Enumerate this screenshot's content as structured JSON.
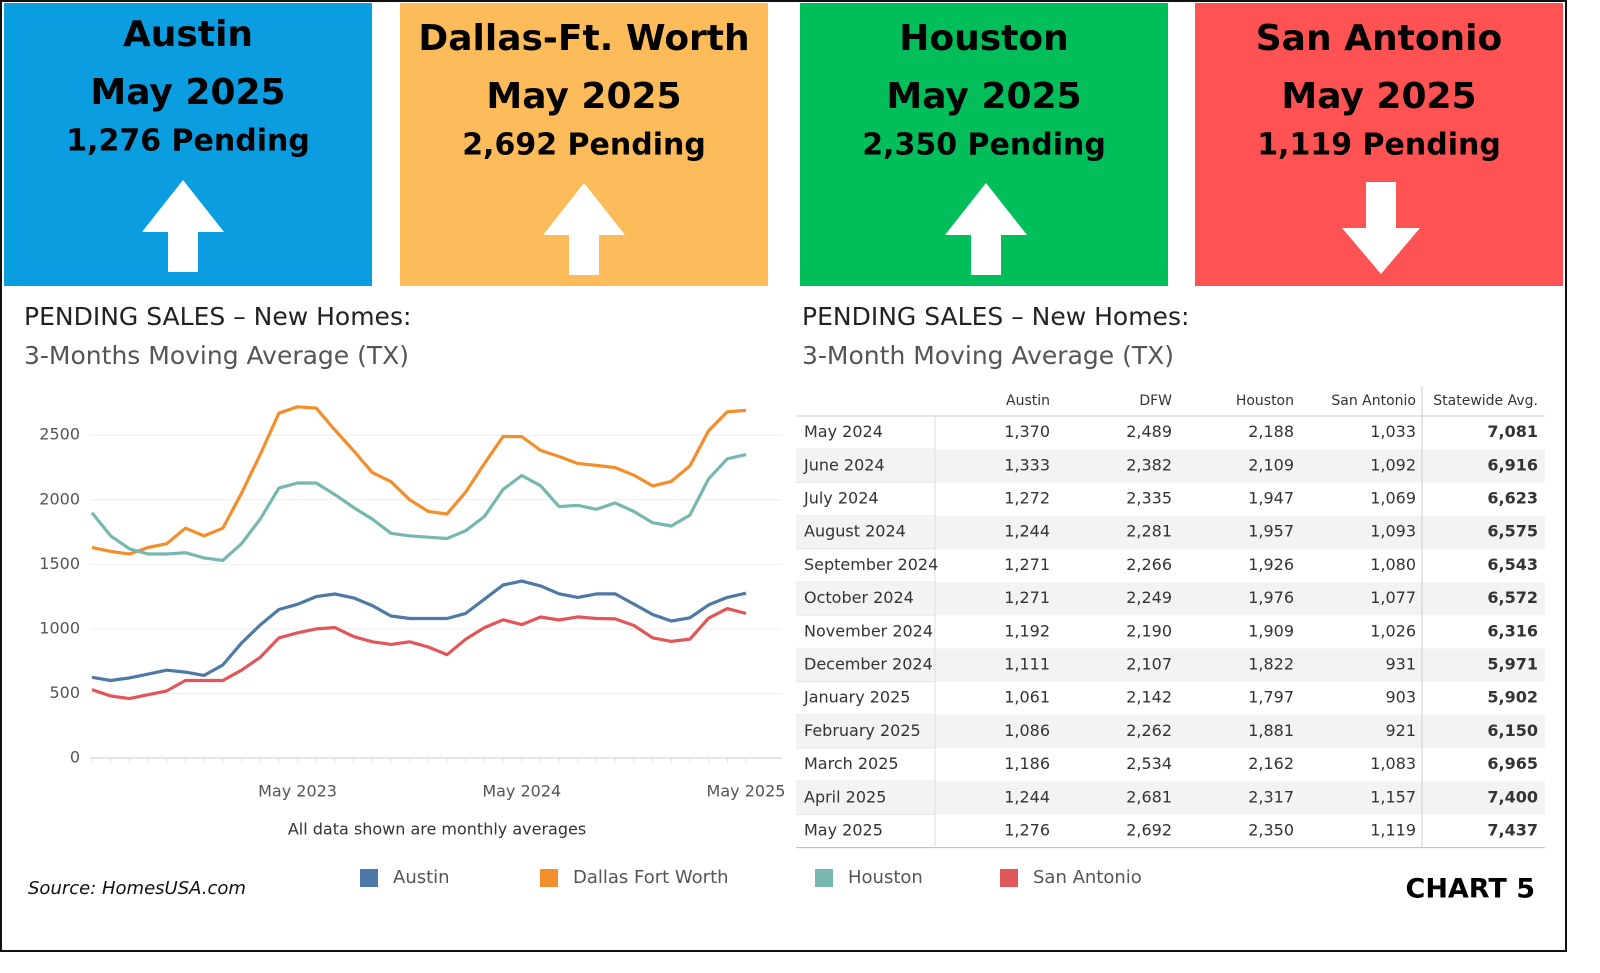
{
  "header": {
    "cards": [
      {
        "title": "Austin",
        "period": "May 2025",
        "pending": "1,276 Pending",
        "color": "#0a9de0"
      },
      {
        "title": "Dallas-Ft. Worth",
        "period": "May 2025",
        "pending": "2,692 Pending",
        "color": "#fdbb5a"
      },
      {
        "title": "Houston",
        "period": "May 2025",
        "pending": "2,350 Pending",
        "color": "#00bf5a"
      },
      {
        "title": "San Antonio",
        "period": "May 2025",
        "pending": "1,119 Pending",
        "color": "#ff5252"
      }
    ]
  },
  "chart_data": {
    "type": "line",
    "title": "PENDING SALES – New Homes:",
    "subtitle": "3-Months  Moving Average (TX)",
    "xlabel": "All data shown are monthly averages",
    "categories": [
      null,
      null,
      null,
      null,
      null,
      null,
      null,
      null,
      null,
      null,
      null,
      "May 2023",
      null,
      null,
      null,
      null,
      null,
      null,
      null,
      null,
      null,
      null,
      null,
      "May 2024",
      null,
      null,
      null,
      null,
      null,
      null,
      null,
      null,
      null,
      null,
      null,
      "May 2025"
    ],
    "series": [
      {
        "name": "Austin",
        "color": "#4e79a7",
        "values": [
          625,
          600,
          620,
          650,
          680,
          665,
          640,
          720,
          890,
          1030,
          1150,
          1190,
          1250,
          1270,
          1240,
          1180,
          1100,
          1080,
          1080,
          1080,
          1120,
          1230,
          1340,
          1370,
          1333,
          1272,
          1244,
          1271,
          1271,
          1192,
          1111,
          1061,
          1086,
          1186,
          1244,
          1276
        ]
      },
      {
        "name": "Dallas Fort Worth",
        "color": "#f28e2b",
        "values": [
          1630,
          1600,
          1580,
          1630,
          1660,
          1780,
          1720,
          1780,
          2050,
          2350,
          2670,
          2720,
          2710,
          2540,
          2380,
          2210,
          2140,
          2000,
          1910,
          1890,
          2060,
          2280,
          2490,
          2489,
          2382,
          2335,
          2281,
          2266,
          2249,
          2190,
          2107,
          2142,
          2262,
          2534,
          2681,
          2692
        ]
      },
      {
        "name": "Houston",
        "color": "#76b7b2",
        "values": [
          1900,
          1720,
          1620,
          1580,
          1580,
          1590,
          1550,
          1530,
          1660,
          1850,
          2090,
          2130,
          2130,
          2040,
          1940,
          1850,
          1740,
          1720,
          1710,
          1700,
          1760,
          1870,
          2080,
          2188,
          2109,
          1947,
          1957,
          1926,
          1976,
          1909,
          1822,
          1797,
          1881,
          2162,
          2317,
          2350
        ]
      },
      {
        "name": "San Antonio",
        "color": "#e15759",
        "values": [
          530,
          480,
          460,
          490,
          520,
          600,
          600,
          600,
          680,
          780,
          930,
          970,
          1000,
          1010,
          940,
          900,
          880,
          900,
          860,
          800,
          920,
          1010,
          1070,
          1033,
          1092,
          1069,
          1093,
          1080,
          1077,
          1026,
          931,
          903,
          921,
          1083,
          1157,
          1119
        ]
      }
    ],
    "ylim": [
      0,
      2850
    ],
    "yticks": [
      0,
      500,
      1000,
      1500,
      2000,
      2500
    ],
    "grid": true
  },
  "table": {
    "title": "PENDING SALES – New Homes:",
    "subtitle": "3-Month Moving Average (TX)",
    "columns": [
      "Austin",
      "DFW",
      "Houston",
      "San Antonio",
      "Statewide Avg."
    ],
    "rows": [
      [
        "May 2024",
        "1,370",
        "2,489",
        "2,188",
        "1,033",
        "7,081"
      ],
      [
        "June 2024",
        "1,333",
        "2,382",
        "2,109",
        "1,092",
        "6,916"
      ],
      [
        "July 2024",
        "1,272",
        "2,335",
        "1,947",
        "1,069",
        "6,623"
      ],
      [
        "August 2024",
        "1,244",
        "2,281",
        "1,957",
        "1,093",
        "6,575"
      ],
      [
        "September 2024",
        "1,271",
        "2,266",
        "1,926",
        "1,080",
        "6,543"
      ],
      [
        "October 2024",
        "1,271",
        "2,249",
        "1,976",
        "1,077",
        "6,572"
      ],
      [
        "November 2024",
        "1,192",
        "2,190",
        "1,909",
        "1,026",
        "6,316"
      ],
      [
        "December 2024",
        "1,111",
        "2,107",
        "1,822",
        "931",
        "5,971"
      ],
      [
        "January 2025",
        "1,061",
        "2,142",
        "1,797",
        "903",
        "5,902"
      ],
      [
        "February 2025",
        "1,086",
        "2,262",
        "1,881",
        "921",
        "6,150"
      ],
      [
        "March 2025",
        "1,186",
        "2,534",
        "2,162",
        "1,083",
        "6,965"
      ],
      [
        "April 2025",
        "1,244",
        "2,681",
        "2,317",
        "1,157",
        "7,400"
      ],
      [
        "May 2025",
        "1,276",
        "2,692",
        "2,350",
        "1,119",
        "7,437"
      ]
    ]
  },
  "source": "Source: HomesUSA.com",
  "chart_label": "CHART 5"
}
